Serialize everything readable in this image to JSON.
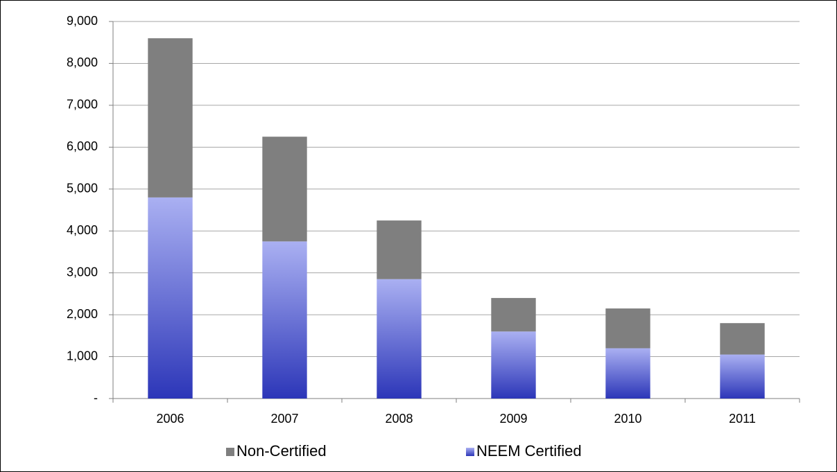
{
  "chart_data": {
    "type": "stacked_bar",
    "categories": [
      "2006",
      "2007",
      "2008",
      "2009",
      "2010",
      "2011"
    ],
    "series": [
      {
        "name": "Non-Certified",
        "color": "#7f7f7f",
        "values": [
          3800,
          2500,
          1400,
          800,
          950,
          750
        ]
      },
      {
        "name": "NEEM Certified",
        "color": "#2c36b8",
        "values": [
          4800,
          3750,
          2850,
          1600,
          1200,
          1050
        ]
      }
    ],
    "ylim": [
      0,
      9000
    ],
    "yticks": [
      {
        "value": 0,
        "label": "-"
      },
      {
        "value": 1000,
        "label": "1,000"
      },
      {
        "value": 2000,
        "label": "2,000"
      },
      {
        "value": 3000,
        "label": "3,000"
      },
      {
        "value": 4000,
        "label": "4,000"
      },
      {
        "value": 5000,
        "label": "5,000"
      },
      {
        "value": 6000,
        "label": "6,000"
      },
      {
        "value": 7000,
        "label": "7,000"
      },
      {
        "value": 8000,
        "label": "8,000"
      },
      {
        "value": 9000,
        "label": "9,000"
      }
    ],
    "grid": true,
    "legend": "bottom"
  }
}
